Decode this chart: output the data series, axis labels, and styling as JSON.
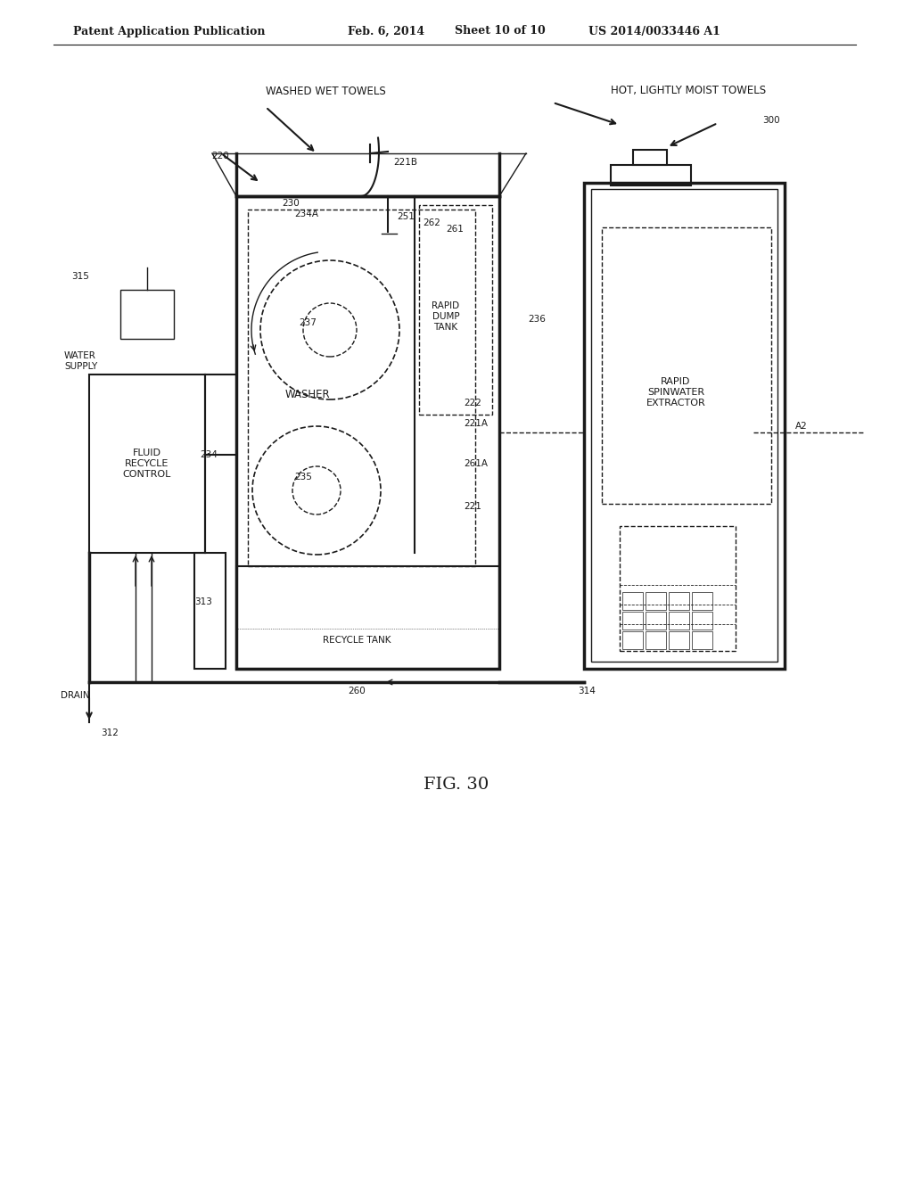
{
  "bg_color": "#ffffff",
  "line_color": "#1a1a1a",
  "header_text": "Patent Application Publication",
  "header_date": "Feb. 6, 2014",
  "header_sheet": "Sheet 10 of 10",
  "header_patent": "US 2014/0033446 A1",
  "figure_label": "FIG. 30",
  "labels": {
    "washed_wet_towels": "WASHED WET TOWELS",
    "hot_moist_towels": "HOT, LIGHTLY MOIST TOWELS",
    "water_supply": "WATER\nSUPPLY",
    "fluid_recycle": "FLUID\nRECYCLE\nCONTROL",
    "washer": "WASHER",
    "rapid_dump_tank": "RAPID\nDUMP\nTANK",
    "recycle_tank": "RECYCLE TANK",
    "drain": "DRAIN",
    "rapid_spinwater": "RAPID\nSPINWATER\nEXTRACTOR",
    "n220": "220",
    "n221": "221",
    "n221A": "221A",
    "n221B": "221B",
    "n222": "222",
    "n230": "230",
    "n234": "234",
    "n234A": "234A",
    "n235": "235",
    "n236": "236",
    "n237": "237",
    "n251": "251",
    "n260": "260",
    "n261": "261",
    "n261A": "261A",
    "n262": "262",
    "n300": "300",
    "n312": "312",
    "n313": "313",
    "n314": "314",
    "n315": "315",
    "nA2": "A2"
  }
}
